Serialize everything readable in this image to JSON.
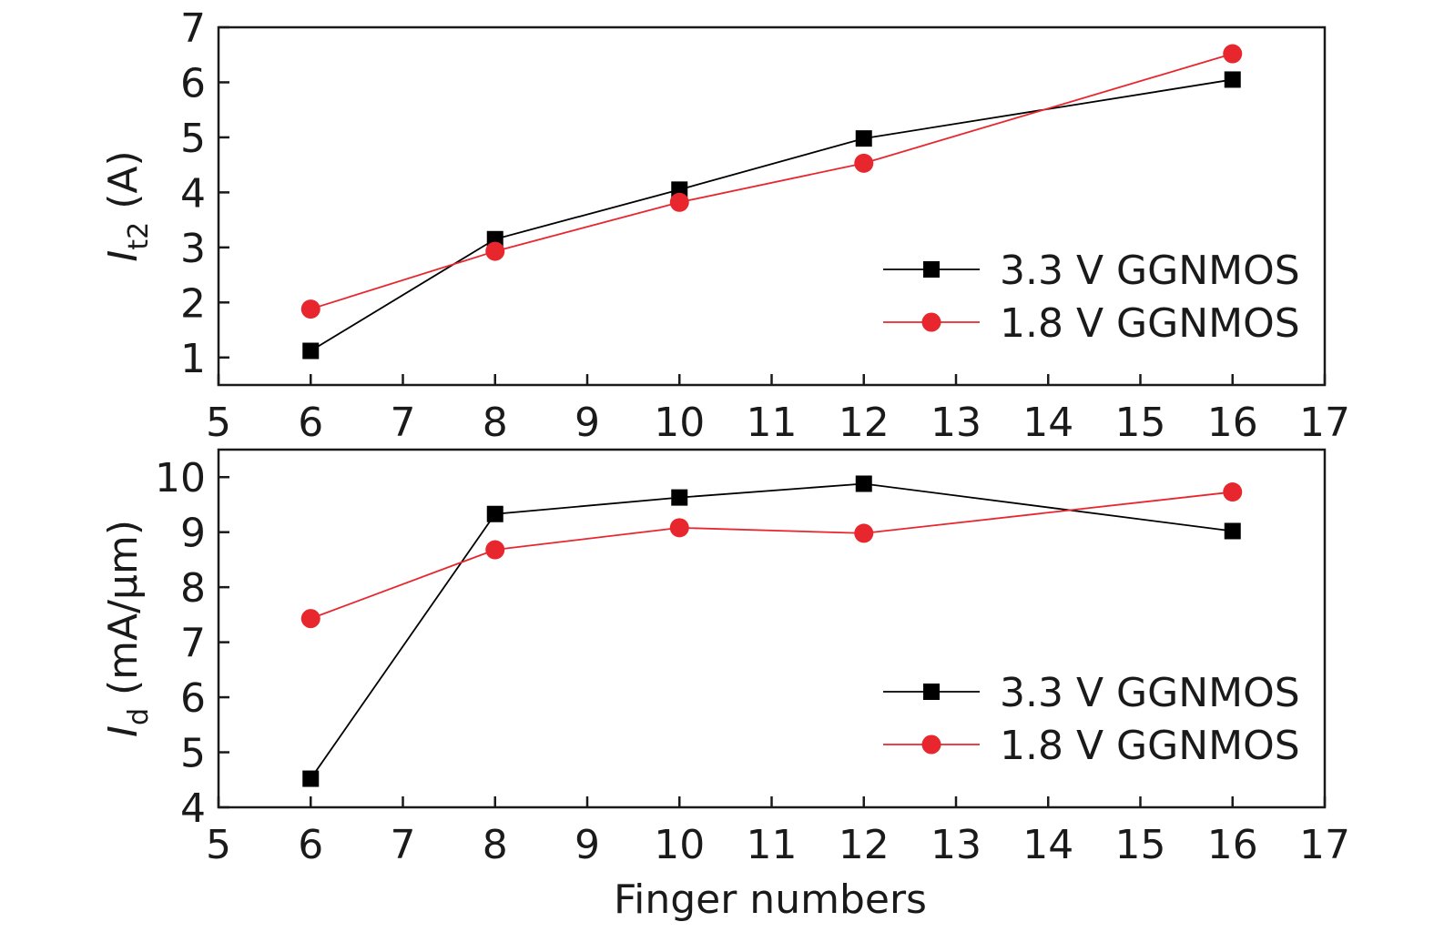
{
  "chart_data": [
    {
      "type": "line",
      "ylabel": {
        "main": "I",
        "sub": "t2",
        "unit": " (A)"
      },
      "xlabel": "",
      "xlim": [
        5,
        17
      ],
      "ylim": [
        0.5,
        7
      ],
      "xticks": [
        5,
        6,
        7,
        8,
        9,
        10,
        11,
        12,
        13,
        14,
        15,
        16,
        17
      ],
      "yticks": [
        1,
        2,
        3,
        4,
        5,
        6,
        7
      ],
      "legend_position": "lower-right",
      "series": [
        {
          "name": "3.3 V GGNMOS",
          "color": "#000000",
          "marker": "square",
          "x": [
            6,
            8,
            10,
            12,
            16
          ],
          "y": [
            1.12,
            3.15,
            4.05,
            4.98,
            6.05
          ]
        },
        {
          "name": "1.8 V GGNMOS",
          "color": "#e8262d",
          "marker": "circle",
          "x": [
            6,
            8,
            10,
            12,
            16
          ],
          "y": [
            1.88,
            2.93,
            3.82,
            4.53,
            6.52
          ]
        }
      ]
    },
    {
      "type": "line",
      "ylabel": {
        "main": "I",
        "sub": "d",
        "unit": " (mA/μm)"
      },
      "xlabel": "Finger numbers",
      "xlim": [
        5,
        17
      ],
      "ylim": [
        4,
        10.5
      ],
      "xticks": [
        5,
        6,
        7,
        8,
        9,
        10,
        11,
        12,
        13,
        14,
        15,
        16,
        17
      ],
      "yticks": [
        4,
        5,
        6,
        7,
        8,
        9,
        10
      ],
      "legend_position": "lower-right",
      "series": [
        {
          "name": "3.3 V GGNMOS",
          "color": "#000000",
          "marker": "square",
          "x": [
            6,
            8,
            10,
            12,
            16
          ],
          "y": [
            4.52,
            9.33,
            9.63,
            9.88,
            9.02
          ]
        },
        {
          "name": "1.8 V GGNMOS",
          "color": "#e8262d",
          "marker": "circle",
          "x": [
            6,
            8,
            10,
            12,
            16
          ],
          "y": [
            7.43,
            8.68,
            9.08,
            8.98,
            9.73
          ]
        }
      ]
    }
  ]
}
